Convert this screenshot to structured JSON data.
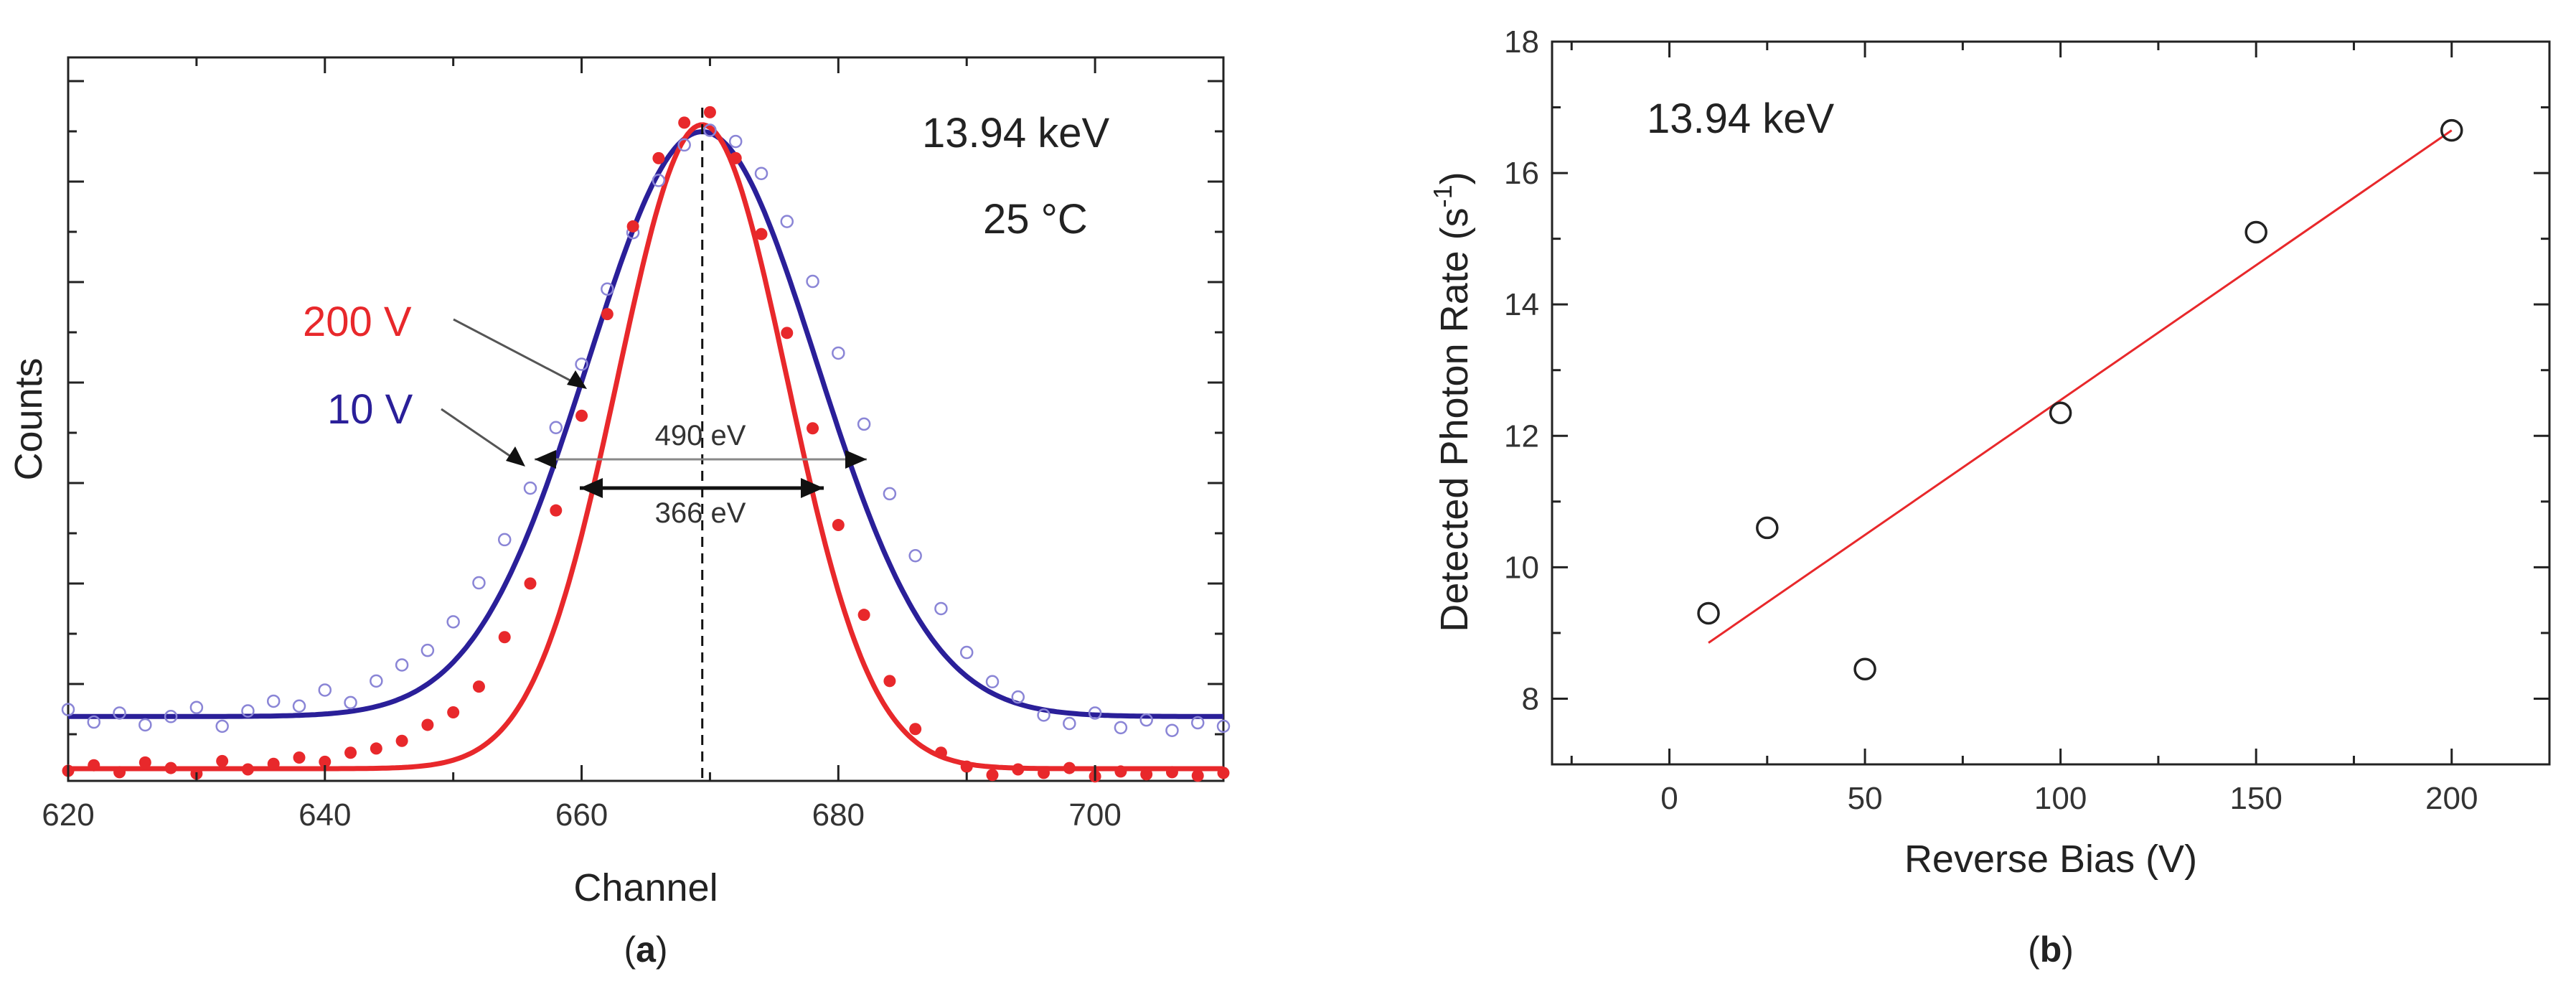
{
  "chart_data": [
    {
      "type": "scatter",
      "panel_label": "a",
      "xlabel": "Channel",
      "ylabel": "Counts",
      "xlim": [
        620,
        710
      ],
      "ylim": [
        0,
        100
      ],
      "x_ticks": [
        620,
        640,
        660,
        680,
        700
      ],
      "y_tick_labels_shown": false,
      "series": [
        {
          "name": "10 V",
          "color": "#2a1f99",
          "fit": {
            "shape": "gaussian",
            "baseline": 11,
            "amplitude": 84,
            "center": 669.4,
            "sigma": 8.9
          },
          "points_x": [
            620,
            622,
            624,
            626,
            628,
            630,
            632,
            634,
            636,
            638,
            640,
            642,
            644,
            646,
            648,
            650,
            652,
            654,
            656,
            658,
            660,
            662,
            664,
            666,
            668,
            670,
            672,
            674,
            676,
            678,
            680,
            682,
            684,
            686,
            688,
            690,
            692,
            694,
            696,
            698,
            700,
            702,
            704,
            706,
            708,
            710
          ],
          "points_y": [
            12.0,
            10.2,
            11.5,
            9.8,
            11.0,
            12.3,
            9.6,
            11.8,
            13.2,
            12.5,
            14.8,
            13.0,
            16.1,
            18.4,
            20.5,
            24.6,
            30.2,
            36.4,
            43.8,
            52.5,
            61.6,
            72.4,
            80.5,
            88.0,
            93.1,
            95.2,
            93.6,
            89.0,
            82.1,
            73.5,
            63.2,
            53.0,
            43.0,
            34.1,
            26.5,
            20.2,
            16.0,
            13.8,
            11.2,
            10.0,
            11.5,
            9.4,
            10.5,
            9.0,
            10.1,
            9.6
          ]
        },
        {
          "name": "200 V",
          "color": "#e8282b",
          "fit": {
            "shape": "gaussian",
            "baseline": 3.5,
            "amplitude": 92.5,
            "center": 669.4,
            "sigma": 6.6
          },
          "points_x": [
            620,
            622,
            624,
            626,
            628,
            630,
            632,
            634,
            636,
            638,
            640,
            642,
            644,
            646,
            648,
            650,
            652,
            654,
            656,
            658,
            660,
            662,
            664,
            666,
            668,
            670,
            672,
            674,
            676,
            678,
            680,
            682,
            684,
            686,
            688,
            690,
            692,
            694,
            696,
            698,
            700,
            702,
            704,
            706,
            708,
            710
          ],
          "points_y": [
            3.2,
            4.0,
            3.0,
            4.4,
            3.6,
            2.8,
            4.6,
            3.4,
            4.2,
            5.1,
            4.5,
            5.8,
            6.4,
            7.5,
            9.8,
            11.6,
            15.3,
            22.4,
            30.1,
            40.6,
            54.2,
            68.8,
            81.4,
            91.2,
            96.3,
            97.8,
            91.2,
            80.3,
            66.1,
            52.4,
            38.5,
            25.6,
            16.1,
            9.2,
            5.8,
            3.8,
            2.6,
            3.4,
            2.9,
            3.6,
            2.4,
            3.1,
            2.7,
            3.0,
            2.5,
            2.9
          ]
        }
      ],
      "annotations": {
        "energy": "13.94 keV",
        "temperature": "25 °C",
        "label_200v": "200 V",
        "label_10v": "10 V",
        "fwhm_10v": "490 eV",
        "fwhm_200v": "366 eV"
      },
      "peak_marker_x": 669.4
    },
    {
      "type": "scatter",
      "panel_label": "b",
      "xlabel": "Reverse Bias (V)",
      "ylabel": "Detected Photon Rate (s",
      "ylabel_sup": "-1",
      "ylabel_end": ")",
      "xlim": [
        -30,
        225
      ],
      "ylim": [
        7,
        18
      ],
      "x_ticks": [
        0,
        50,
        100,
        150,
        200
      ],
      "y_ticks": [
        8,
        10,
        12,
        14,
        16,
        18
      ],
      "annotation": "13.94 keV",
      "points": {
        "x": [
          10,
          25,
          50,
          100,
          150,
          200
        ],
        "y": [
          9.3,
          10.6,
          8.45,
          12.35,
          15.1,
          16.65
        ]
      },
      "fit_line": {
        "x": [
          10,
          200
        ],
        "y": [
          8.85,
          16.65
        ],
        "color": "#e8282b"
      }
    }
  ]
}
